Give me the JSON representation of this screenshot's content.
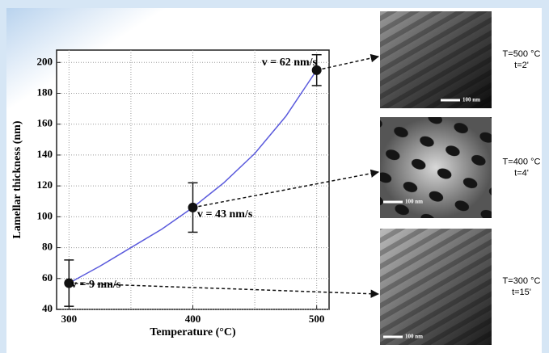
{
  "chart_data": {
    "type": "scatter",
    "x_label": "Temperature (°C)",
    "y_label": "Lamellar thickness (nm)",
    "x": [
      300,
      400,
      500
    ],
    "values": [
      57,
      106,
      195
    ],
    "errors": [
      15,
      16,
      10
    ],
    "point_color": "#111111",
    "curve": {
      "x": [
        300,
        325,
        350,
        375,
        400,
        425,
        450,
        475,
        500
      ],
      "values": [
        57,
        68,
        80,
        92,
        106,
        122,
        141,
        165,
        195
      ],
      "color": "#5a5adc"
    },
    "annotations": [
      "v = 9 nm/s",
      "v = 43 nm/s",
      "v = 62 nm/s"
    ],
    "xlim": [
      290,
      510
    ],
    "ylim": [
      40,
      208
    ],
    "xticks": [
      300,
      400,
      500
    ],
    "x_grid": [
      350,
      450
    ],
    "yticks": [
      40,
      60,
      80,
      100,
      120,
      140,
      160,
      180,
      200
    ],
    "grid": true
  },
  "images": [
    {
      "temperature": "T=500 °C",
      "time": "t=2'",
      "scale": "100 nm"
    },
    {
      "temperature": "T=400 °C",
      "time": "t=4'",
      "scale": "100 nm"
    },
    {
      "temperature": "T=300 °C",
      "time": "t=15'",
      "scale": "100 nm"
    }
  ]
}
